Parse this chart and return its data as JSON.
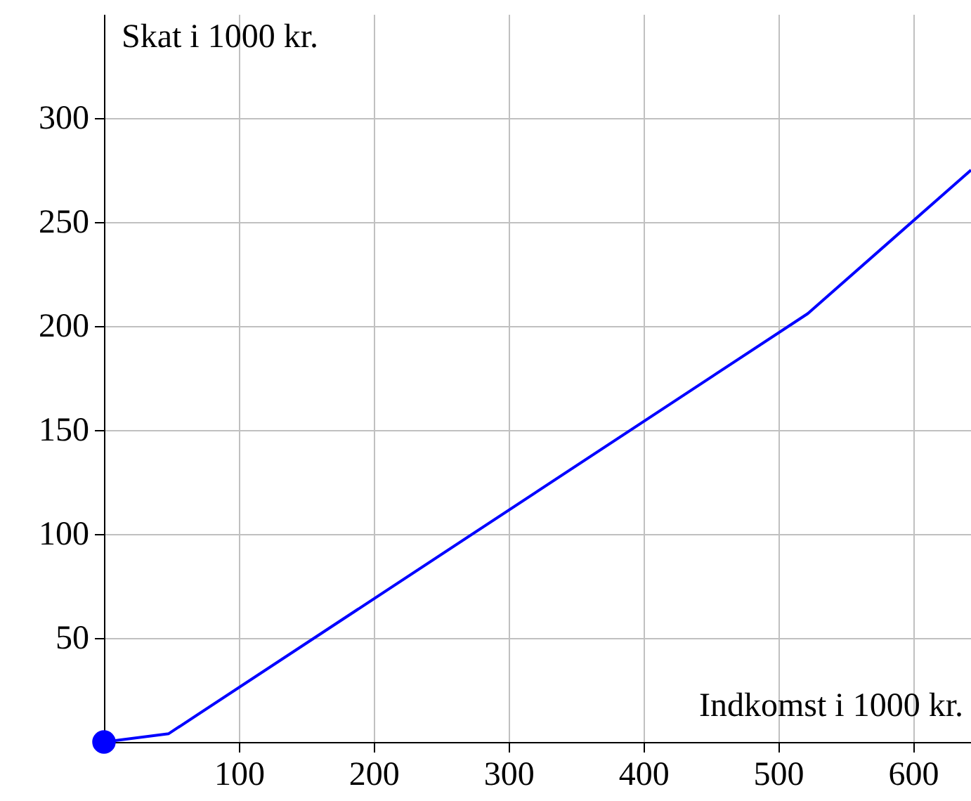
{
  "chart_data": {
    "type": "line",
    "xlabel": "Indkomst i 1000 kr.",
    "ylabel": "Skat i 1000 kr.",
    "xlim": [
      0,
      643
    ],
    "ylim": [
      0,
      350
    ],
    "xticks": [
      100,
      200,
      300,
      400,
      500,
      600
    ],
    "yticks": [
      50,
      100,
      150,
      200,
      250,
      300
    ],
    "grid": true,
    "series": [
      {
        "color": "#0000ff",
        "x": [
          0,
          48,
          522,
          643
        ],
        "values": [
          0,
          4,
          206,
          275
        ],
        "marker": "none",
        "line_style": "solid"
      },
      {
        "type": "scatter",
        "color": "#0000ff",
        "x": [
          0
        ],
        "values": [
          0
        ],
        "marker": "circle"
      }
    ]
  }
}
